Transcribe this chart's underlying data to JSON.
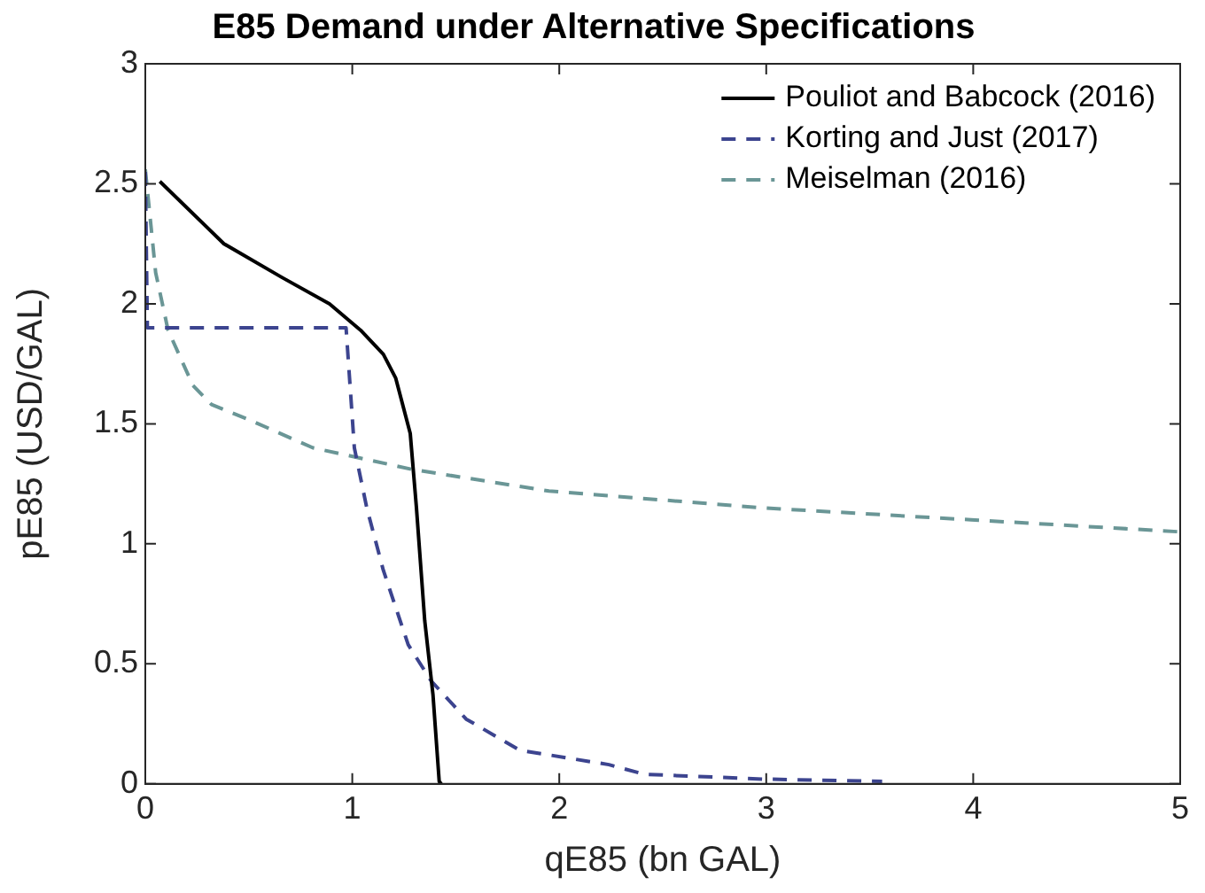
{
  "chart_data": {
    "type": "line",
    "title": "E85 Demand under Alternative Specifications",
    "xlabel": "qE85 (bn GAL)",
    "ylabel": "pE85 (USD/GAL)",
    "xlim": [
      0,
      5
    ],
    "xticks": [
      0,
      1,
      2,
      3,
      4,
      5
    ],
    "ylim": [
      0,
      3
    ],
    "yticks": [
      0,
      0.5,
      1,
      1.5,
      2,
      2.5,
      3
    ],
    "grid": false,
    "legend": "top right",
    "marker": "none",
    "series": [
      {
        "name": "Pouliot and Babcock (2016)",
        "color": "#000000",
        "line_style": "solid",
        "x": [
          0.07,
          0.38,
          0.66,
          0.89,
          1.04,
          1.15,
          1.21,
          1.28,
          1.31,
          1.35,
          1.39,
          1.42,
          1.43
        ],
        "values": [
          2.51,
          2.25,
          2.11,
          2.0,
          1.89,
          1.79,
          1.69,
          1.46,
          1.15,
          0.68,
          0.37,
          0.01,
          0
        ]
      },
      {
        "name": "Korting and Just (2017)",
        "color": "#3c448f",
        "line_style": "dashed",
        "x": [
          0,
          0.01,
          0.97,
          1.01,
          1.07,
          1.15,
          1.27,
          1.38,
          1.55,
          1.81,
          2.24,
          2.41,
          2.98,
          3.56
        ],
        "values": [
          2.55,
          1.9,
          1.9,
          1.4,
          1.15,
          0.89,
          0.58,
          0.43,
          0.27,
          0.14,
          0.08,
          0.04,
          0.02,
          0.01
        ]
      },
      {
        "name": "Meiselman (2016)",
        "color": "#6a9696",
        "line_style": "dashed",
        "x": [
          0,
          0.05,
          0.11,
          0.23,
          0.32,
          0.52,
          0.81,
          1.29,
          1.95,
          2.98,
          3.99,
          5
        ],
        "values": [
          2.56,
          2.13,
          1.89,
          1.66,
          1.58,
          1.51,
          1.4,
          1.31,
          1.22,
          1.15,
          1.1,
          1.05
        ]
      }
    ]
  }
}
